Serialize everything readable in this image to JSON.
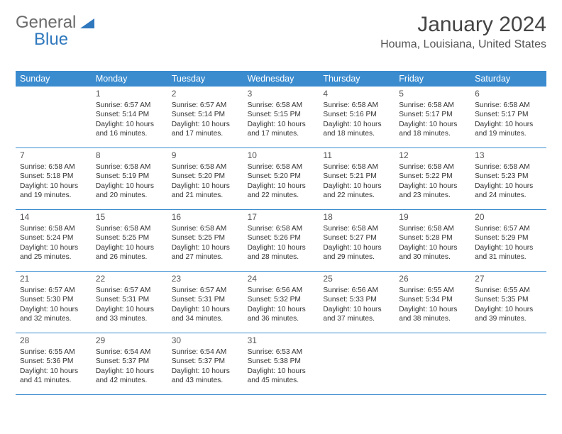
{
  "logo": {
    "text1": "General",
    "text2": "Blue"
  },
  "title": "January 2024",
  "subtitle": "Houma, Louisiana, United States",
  "headerBg": "#3b8ccf",
  "weekdays": [
    "Sunday",
    "Monday",
    "Tuesday",
    "Wednesday",
    "Thursday",
    "Friday",
    "Saturday"
  ],
  "weeks": [
    [
      {
        "n": "",
        "sr": "",
        "ss": "",
        "dl": ""
      },
      {
        "n": "1",
        "sr": "6:57 AM",
        "ss": "5:14 PM",
        "dl": "10 hours and 16 minutes."
      },
      {
        "n": "2",
        "sr": "6:57 AM",
        "ss": "5:14 PM",
        "dl": "10 hours and 17 minutes."
      },
      {
        "n": "3",
        "sr": "6:58 AM",
        "ss": "5:15 PM",
        "dl": "10 hours and 17 minutes."
      },
      {
        "n": "4",
        "sr": "6:58 AM",
        "ss": "5:16 PM",
        "dl": "10 hours and 18 minutes."
      },
      {
        "n": "5",
        "sr": "6:58 AM",
        "ss": "5:17 PM",
        "dl": "10 hours and 18 minutes."
      },
      {
        "n": "6",
        "sr": "6:58 AM",
        "ss": "5:17 PM",
        "dl": "10 hours and 19 minutes."
      }
    ],
    [
      {
        "n": "7",
        "sr": "6:58 AM",
        "ss": "5:18 PM",
        "dl": "10 hours and 19 minutes."
      },
      {
        "n": "8",
        "sr": "6:58 AM",
        "ss": "5:19 PM",
        "dl": "10 hours and 20 minutes."
      },
      {
        "n": "9",
        "sr": "6:58 AM",
        "ss": "5:20 PM",
        "dl": "10 hours and 21 minutes."
      },
      {
        "n": "10",
        "sr": "6:58 AM",
        "ss": "5:20 PM",
        "dl": "10 hours and 22 minutes."
      },
      {
        "n": "11",
        "sr": "6:58 AM",
        "ss": "5:21 PM",
        "dl": "10 hours and 22 minutes."
      },
      {
        "n": "12",
        "sr": "6:58 AM",
        "ss": "5:22 PM",
        "dl": "10 hours and 23 minutes."
      },
      {
        "n": "13",
        "sr": "6:58 AM",
        "ss": "5:23 PM",
        "dl": "10 hours and 24 minutes."
      }
    ],
    [
      {
        "n": "14",
        "sr": "6:58 AM",
        "ss": "5:24 PM",
        "dl": "10 hours and 25 minutes."
      },
      {
        "n": "15",
        "sr": "6:58 AM",
        "ss": "5:25 PM",
        "dl": "10 hours and 26 minutes."
      },
      {
        "n": "16",
        "sr": "6:58 AM",
        "ss": "5:25 PM",
        "dl": "10 hours and 27 minutes."
      },
      {
        "n": "17",
        "sr": "6:58 AM",
        "ss": "5:26 PM",
        "dl": "10 hours and 28 minutes."
      },
      {
        "n": "18",
        "sr": "6:58 AM",
        "ss": "5:27 PM",
        "dl": "10 hours and 29 minutes."
      },
      {
        "n": "19",
        "sr": "6:58 AM",
        "ss": "5:28 PM",
        "dl": "10 hours and 30 minutes."
      },
      {
        "n": "20",
        "sr": "6:57 AM",
        "ss": "5:29 PM",
        "dl": "10 hours and 31 minutes."
      }
    ],
    [
      {
        "n": "21",
        "sr": "6:57 AM",
        "ss": "5:30 PM",
        "dl": "10 hours and 32 minutes."
      },
      {
        "n": "22",
        "sr": "6:57 AM",
        "ss": "5:31 PM",
        "dl": "10 hours and 33 minutes."
      },
      {
        "n": "23",
        "sr": "6:57 AM",
        "ss": "5:31 PM",
        "dl": "10 hours and 34 minutes."
      },
      {
        "n": "24",
        "sr": "6:56 AM",
        "ss": "5:32 PM",
        "dl": "10 hours and 36 minutes."
      },
      {
        "n": "25",
        "sr": "6:56 AM",
        "ss": "5:33 PM",
        "dl": "10 hours and 37 minutes."
      },
      {
        "n": "26",
        "sr": "6:55 AM",
        "ss": "5:34 PM",
        "dl": "10 hours and 38 minutes."
      },
      {
        "n": "27",
        "sr": "6:55 AM",
        "ss": "5:35 PM",
        "dl": "10 hours and 39 minutes."
      }
    ],
    [
      {
        "n": "28",
        "sr": "6:55 AM",
        "ss": "5:36 PM",
        "dl": "10 hours and 41 minutes."
      },
      {
        "n": "29",
        "sr": "6:54 AM",
        "ss": "5:37 PM",
        "dl": "10 hours and 42 minutes."
      },
      {
        "n": "30",
        "sr": "6:54 AM",
        "ss": "5:37 PM",
        "dl": "10 hours and 43 minutes."
      },
      {
        "n": "31",
        "sr": "6:53 AM",
        "ss": "5:38 PM",
        "dl": "10 hours and 45 minutes."
      },
      {
        "n": "",
        "sr": "",
        "ss": "",
        "dl": ""
      },
      {
        "n": "",
        "sr": "",
        "ss": "",
        "dl": ""
      },
      {
        "n": "",
        "sr": "",
        "ss": "",
        "dl": ""
      }
    ]
  ],
  "labels": {
    "sunrise": "Sunrise: ",
    "sunset": "Sunset: ",
    "daylight": "Daylight: "
  }
}
